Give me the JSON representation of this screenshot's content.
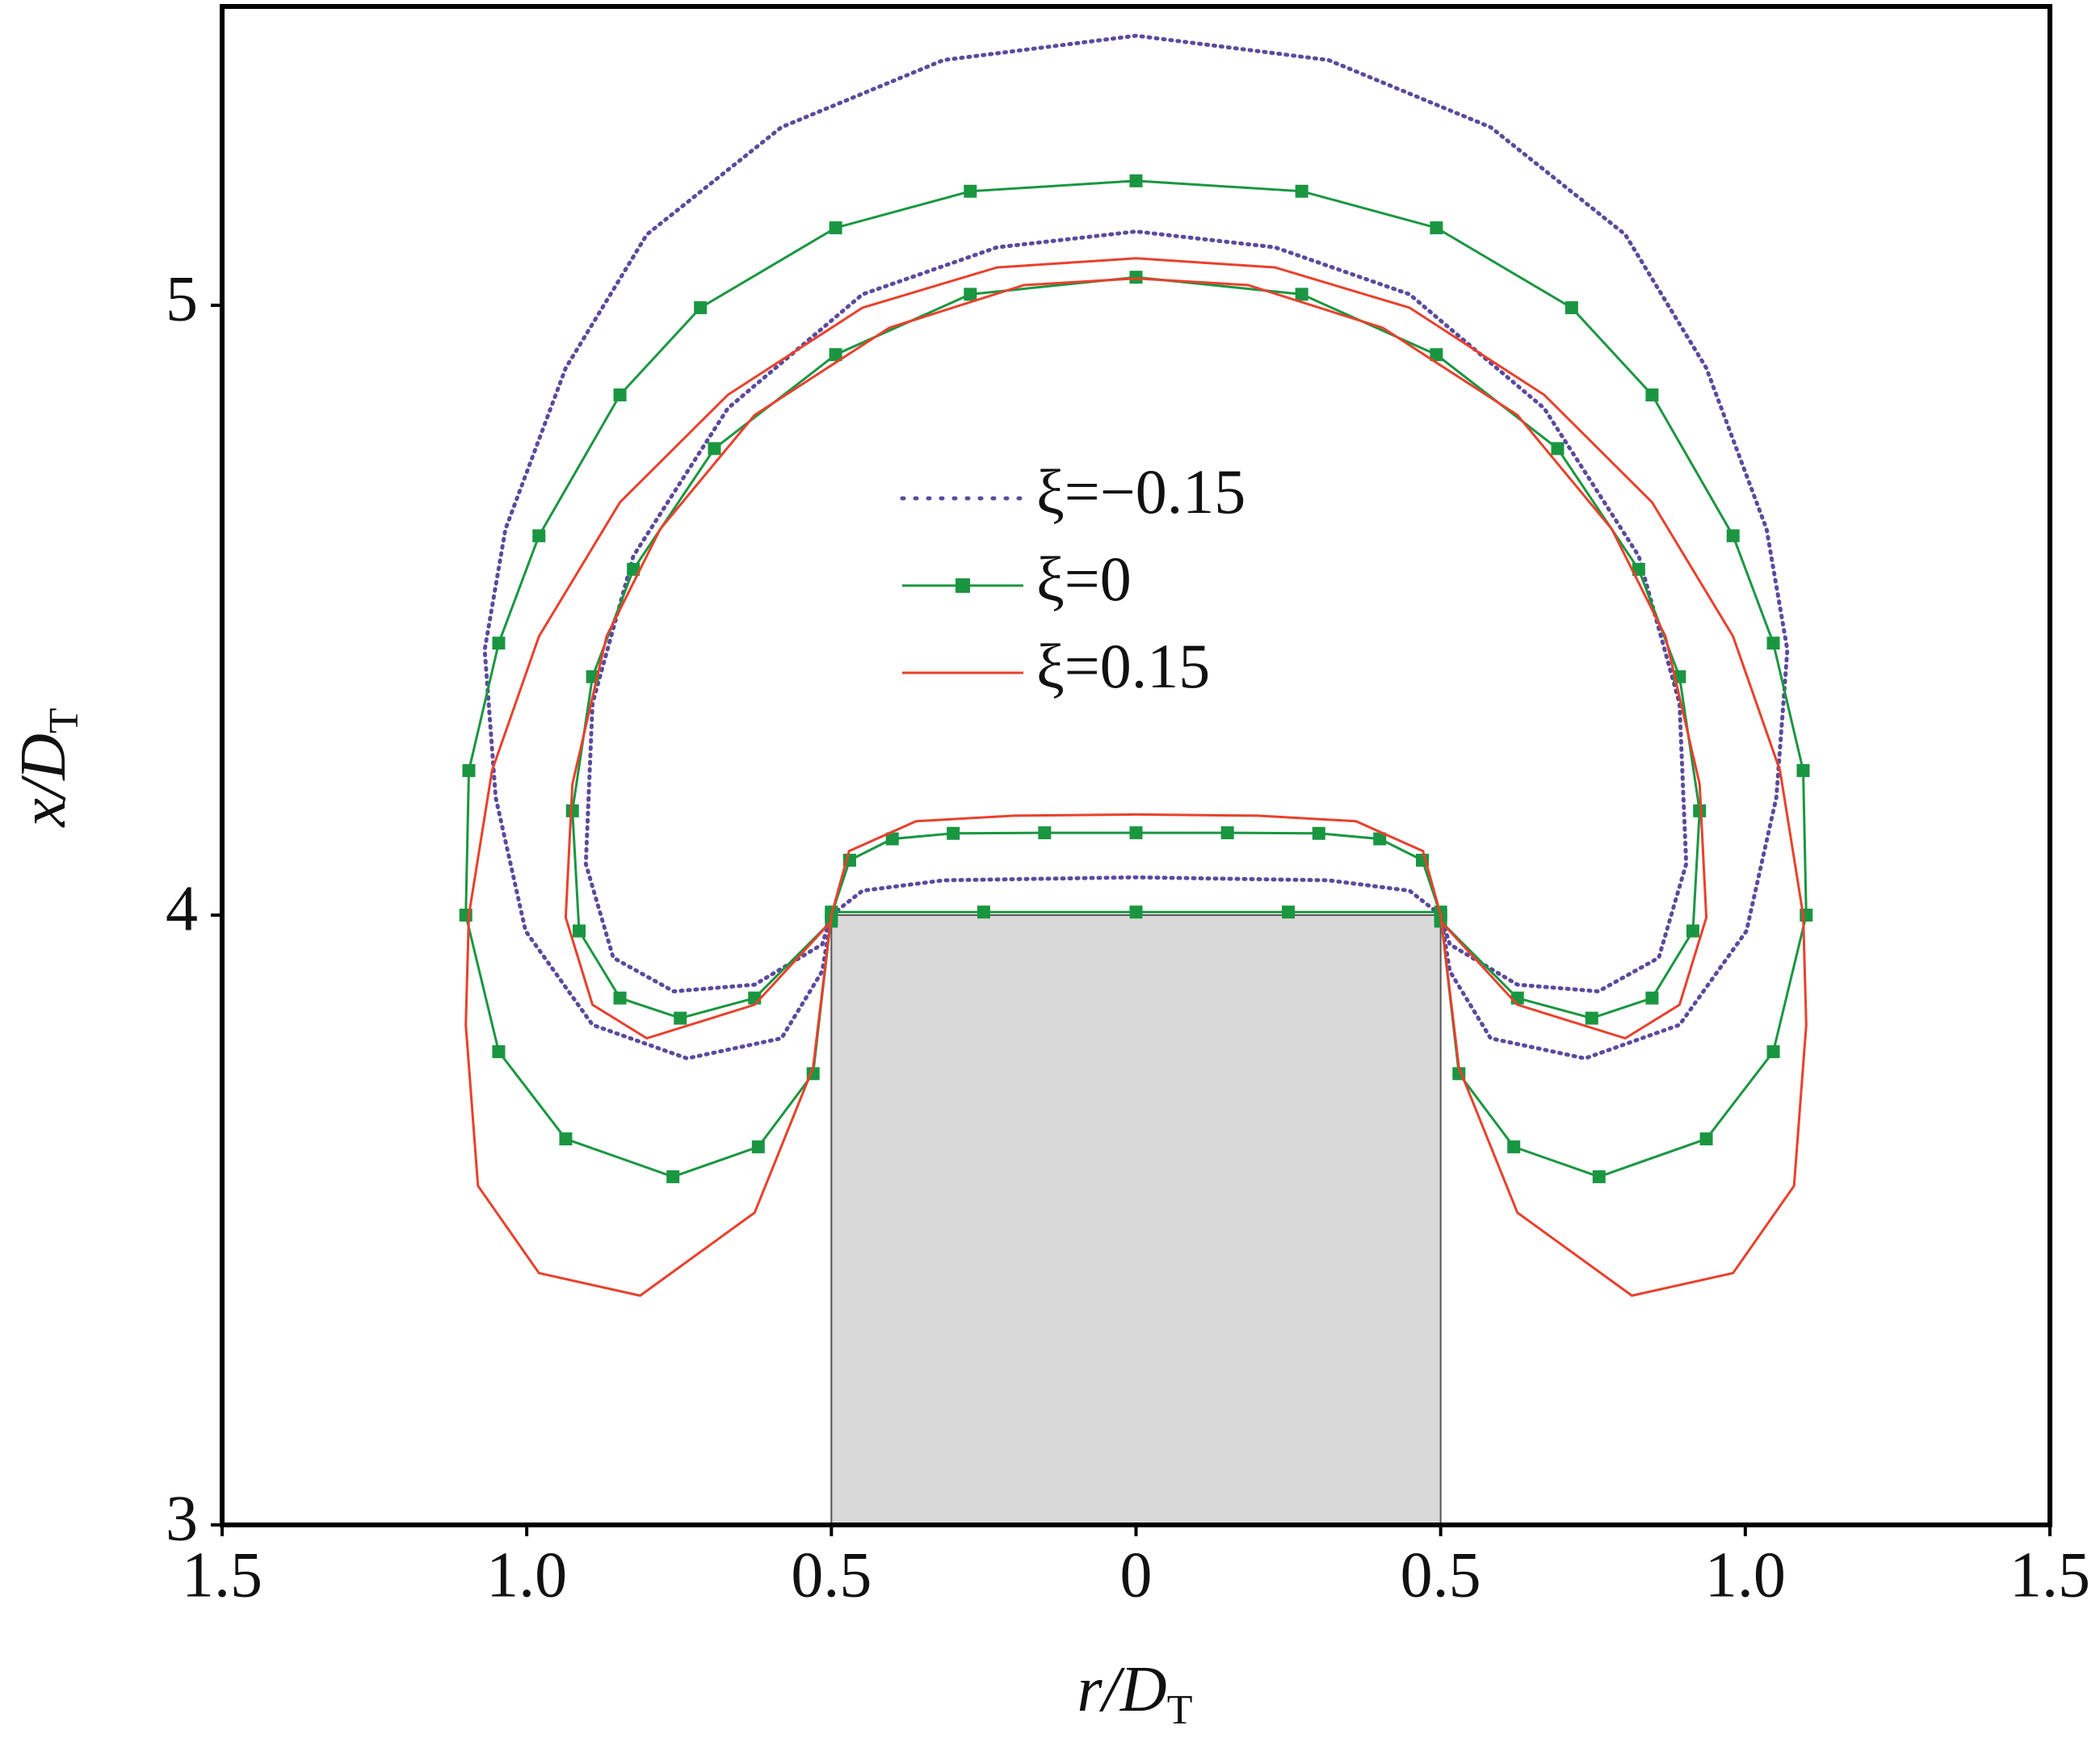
{
  "chart_data": {
    "type": "line",
    "xlabel": [
      "r/D",
      "T"
    ],
    "ylabel": [
      "x/D",
      "T"
    ],
    "xlim": [
      -1.5,
      1.5
    ],
    "ylim": [
      3,
      5.49
    ],
    "xticks": [
      {
        "value": -1.5,
        "label": "1.5"
      },
      {
        "value": -1.0,
        "label": "1.0"
      },
      {
        "value": -0.5,
        "label": "0.5"
      },
      0,
      {
        "value": 0.5,
        "label": "0.5"
      },
      {
        "value": 1.0,
        "label": "1.0"
      },
      {
        "value": 1.5,
        "label": "1.5"
      }
    ],
    "yticks": [
      3,
      4,
      5
    ],
    "body": {
      "r": [
        -0.5,
        0.5
      ],
      "x": [
        3,
        4
      ],
      "color": "#d9d9d9"
    },
    "series": [
      {
        "name": "ξ=−0.15",
        "color": "#5b4a9e",
        "style": "dotted",
        "marker": null,
        "x": [
          -0.5,
          -0.515,
          -0.582,
          -0.737,
          -0.892,
          -1.002,
          -1.051,
          -1.069,
          -1.035,
          -0.936,
          -0.803,
          -0.582,
          -0.316,
          0,
          0.316,
          0.582,
          0.803,
          0.936,
          1.035,
          1.069,
          1.051,
          1.002,
          0.892,
          0.737,
          0.582,
          0.515,
          0.5,
          null,
          -0.5,
          -0.515,
          -0.626,
          -0.759,
          -0.858,
          -0.903,
          -0.892,
          -0.825,
          -0.67,
          -0.449,
          -0.228,
          0,
          0.228,
          0.449,
          0.67,
          0.825,
          0.892,
          0.903,
          0.858,
          0.759,
          0.626,
          0.515,
          0.5,
          null,
          -0.5,
          -0.449,
          -0.316,
          0,
          0.316,
          0.449,
          0.5
        ],
        "values": [
          4.0,
          3.908,
          3.798,
          3.765,
          3.82,
          3.974,
          4.193,
          4.435,
          4.633,
          4.897,
          5.116,
          5.292,
          5.402,
          5.442,
          5.402,
          5.292,
          5.116,
          4.897,
          4.633,
          4.435,
          4.193,
          3.974,
          3.82,
          3.765,
          3.798,
          3.908,
          4.0,
          null,
          4.0,
          3.952,
          3.886,
          3.875,
          3.93,
          4.084,
          4.347,
          4.589,
          4.831,
          5.018,
          5.095,
          5.121,
          5.095,
          5.018,
          4.831,
          4.589,
          4.347,
          4.084,
          3.93,
          3.875,
          3.886,
          3.952,
          4.0,
          null,
          4.0,
          4.04,
          4.057,
          4.062,
          4.057,
          4.04,
          4.0
        ]
      },
      {
        "name": "ξ=0",
        "color": "#1a9641",
        "style": "solid",
        "marker": "square",
        "x": [
          -0.5,
          -0.53,
          -0.62,
          -0.76,
          -0.936,
          -1.046,
          -1.1,
          -1.095,
          -1.046,
          -0.98,
          -0.847,
          -0.715,
          -0.493,
          -0.272,
          0,
          0.272,
          0.493,
          0.715,
          0.847,
          0.98,
          1.046,
          1.095,
          1.1,
          1.046,
          0.936,
          0.76,
          0.62,
          0.53,
          0.5,
          null,
          -0.5,
          -0.626,
          -0.748,
          -0.847,
          -0.914,
          -0.925,
          -0.892,
          -0.825,
          -0.692,
          -0.493,
          -0.272,
          0,
          0.272,
          0.493,
          0.692,
          0.825,
          0.892,
          0.925,
          0.914,
          0.847,
          0.748,
          0.626,
          0.5,
          null,
          -0.5,
          -0.47,
          -0.4,
          -0.3,
          -0.15,
          0,
          0.15,
          0.3,
          0.4,
          0.47,
          0.5,
          null,
          -0.5,
          -0.25,
          0,
          0.25,
          0.5
        ],
        "values": [
          4.0,
          3.74,
          3.62,
          3.571,
          3.633,
          3.776,
          4.0,
          4.237,
          4.446,
          4.622,
          4.853,
          4.996,
          5.127,
          5.187,
          5.204,
          5.187,
          5.127,
          4.996,
          4.853,
          4.622,
          4.446,
          4.237,
          4.0,
          3.776,
          3.633,
          3.571,
          3.62,
          3.74,
          4.0,
          null,
          3.99,
          3.864,
          3.831,
          3.864,
          3.974,
          4.171,
          4.391,
          4.567,
          4.765,
          4.919,
          5.018,
          5.046,
          5.018,
          4.919,
          4.765,
          4.567,
          4.391,
          4.171,
          3.974,
          3.864,
          3.831,
          3.864,
          3.99,
          null,
          4.0,
          4.09,
          4.125,
          4.134,
          4.135,
          4.135,
          4.135,
          4.134,
          4.125,
          4.09,
          4.0,
          null,
          4.005,
          4.005,
          4.005,
          4.005,
          4.005
        ]
      },
      {
        "name": "ξ=0.15",
        "color": "#e8412c",
        "style": "solid",
        "marker": null,
        "x": [
          -0.5,
          -0.53,
          -0.626,
          -0.814,
          -0.98,
          -1.08,
          -1.1,
          -1.095,
          -1.057,
          -0.98,
          -0.847,
          -0.67,
          -0.449,
          -0.228,
          0,
          0.228,
          0.449,
          0.67,
          0.847,
          0.98,
          1.057,
          1.095,
          1.1,
          1.08,
          0.98,
          0.814,
          0.626,
          0.53,
          0.5,
          null,
          -0.5,
          -0.626,
          -0.803,
          -0.892,
          -0.936,
          -0.925,
          -0.869,
          -0.781,
          -0.626,
          -0.405,
          -0.184,
          0,
          0.184,
          0.405,
          0.626,
          0.781,
          0.869,
          0.925,
          0.936,
          0.892,
          0.803,
          0.626,
          0.5,
          null,
          -0.5,
          -0.471,
          -0.361,
          -0.2,
          0,
          0.2,
          0.361,
          0.471,
          0.5
        ],
        "values": [
          4.0,
          3.75,
          3.512,
          3.376,
          3.413,
          3.556,
          3.82,
          4.0,
          4.237,
          4.457,
          4.677,
          4.853,
          4.996,
          5.062,
          5.077,
          5.062,
          4.996,
          4.853,
          4.677,
          4.457,
          4.237,
          4.0,
          3.82,
          3.556,
          3.413,
          3.376,
          3.512,
          3.75,
          4.0,
          null,
          3.99,
          3.853,
          3.798,
          3.853,
          3.996,
          4.215,
          4.457,
          4.633,
          4.82,
          4.963,
          5.033,
          5.044,
          5.033,
          4.963,
          4.82,
          4.633,
          4.457,
          4.215,
          3.996,
          3.853,
          3.798,
          3.853,
          3.99,
          null,
          4.0,
          4.105,
          4.154,
          4.163,
          4.165,
          4.163,
          4.154,
          4.105,
          4.0
        ]
      }
    ]
  }
}
